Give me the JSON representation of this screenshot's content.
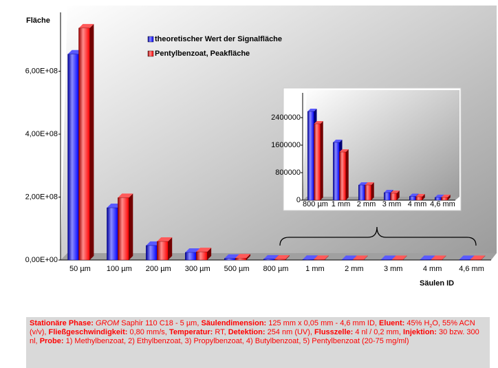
{
  "chart_data": [
    {
      "type": "bar",
      "y_label": "Fläche",
      "x_label": "Säulen ID",
      "categories": [
        "50 µm",
        "100 µm",
        "200 µm",
        "300 µm",
        "500 µm",
        "800 µm",
        "1 mm",
        "2 mm",
        "3 mm",
        "4 mm",
        "4,6 mm"
      ],
      "series": [
        {
          "name": "theoretischer Wert der Signalfläche",
          "color": "#0000ff",
          "values": [
            654000000,
            166000000,
            46000000,
            24000000,
            5000000,
            2580000,
            1680000,
            440000,
            220000,
            110000,
            80000
          ]
        },
        {
          "name": "Pentylbenzoat, Peakfläche",
          "color": "#ff0000",
          "values": [
            737000000,
            198000000,
            59000000,
            26000000,
            6000000,
            2220000,
            1400000,
            440000,
            200000,
            100000,
            80000
          ]
        }
      ],
      "ylim": [
        0,
        800000000
      ],
      "yticks": [
        {
          "value": 0,
          "label": "0,00E+00"
        },
        {
          "value": 200000000,
          "label": "2,00E+08"
        },
        {
          "value": 400000000,
          "label": "4,00E+08"
        },
        {
          "value": 600000000,
          "label": "6,00E+08"
        }
      ],
      "legend": "top-left"
    },
    {
      "type": "bar",
      "categories": [
        "800 µm",
        "1 mm",
        "2 mm",
        "3 mm",
        "4 mm",
        "4,6 mm"
      ],
      "series": [
        {
          "color": "#0000ff",
          "values": [
            2580000,
            1680000,
            440000,
            220000,
            110000,
            80000
          ]
        },
        {
          "color": "#ff0000",
          "values": [
            2220000,
            1400000,
            440000,
            200000,
            100000,
            80000
          ]
        }
      ],
      "ylim": [
        0,
        3200000
      ],
      "yticks": [
        0,
        800000,
        1600000,
        2400000
      ]
    }
  ],
  "caption": [
    {
      "text": "Stationäre Phase:",
      "style": "bold"
    },
    {
      "text": " "
    },
    {
      "text": "GROM",
      "style": "italic"
    },
    {
      "text": " Saphir 110 C18 - 5 µm, "
    },
    {
      "text": "Säulendimension:",
      "style": "bold"
    },
    {
      "text": " 125 mm x 0,05 mm - 4,6 mm ID, "
    },
    {
      "text": "Eluent:",
      "style": "bold"
    },
    {
      "text": " 45% H"
    },
    {
      "text": "2",
      "style": "sub"
    },
    {
      "text": "O, 55% ACN (v/v), "
    },
    {
      "text": "Fließgeschwindigkeit:",
      "style": "bold"
    },
    {
      "text": " 0,80 mm/s, "
    },
    {
      "text": "Temperatur:",
      "style": "bold"
    },
    {
      "text": " RT, "
    },
    {
      "text": "Detektion:",
      "style": "bold"
    },
    {
      "text": " 254 nm (UV), "
    },
    {
      "text": "Flusszelle:",
      "style": "bold"
    },
    {
      "text": " 4 nl / 0,2 mm, "
    },
    {
      "text": "Injektion:",
      "style": "bold"
    },
    {
      "text": " 30 bzw. 300 nl, "
    },
    {
      "text": "Probe:",
      "style": "bold"
    },
    {
      "text": " 1) Methylbenzoat, 2) Ethylbenzoat, 3) Propylbenzoat, 4) Butylbenzoat, 5) Pentylbenzoat (20-75 mg/ml)"
    }
  ]
}
